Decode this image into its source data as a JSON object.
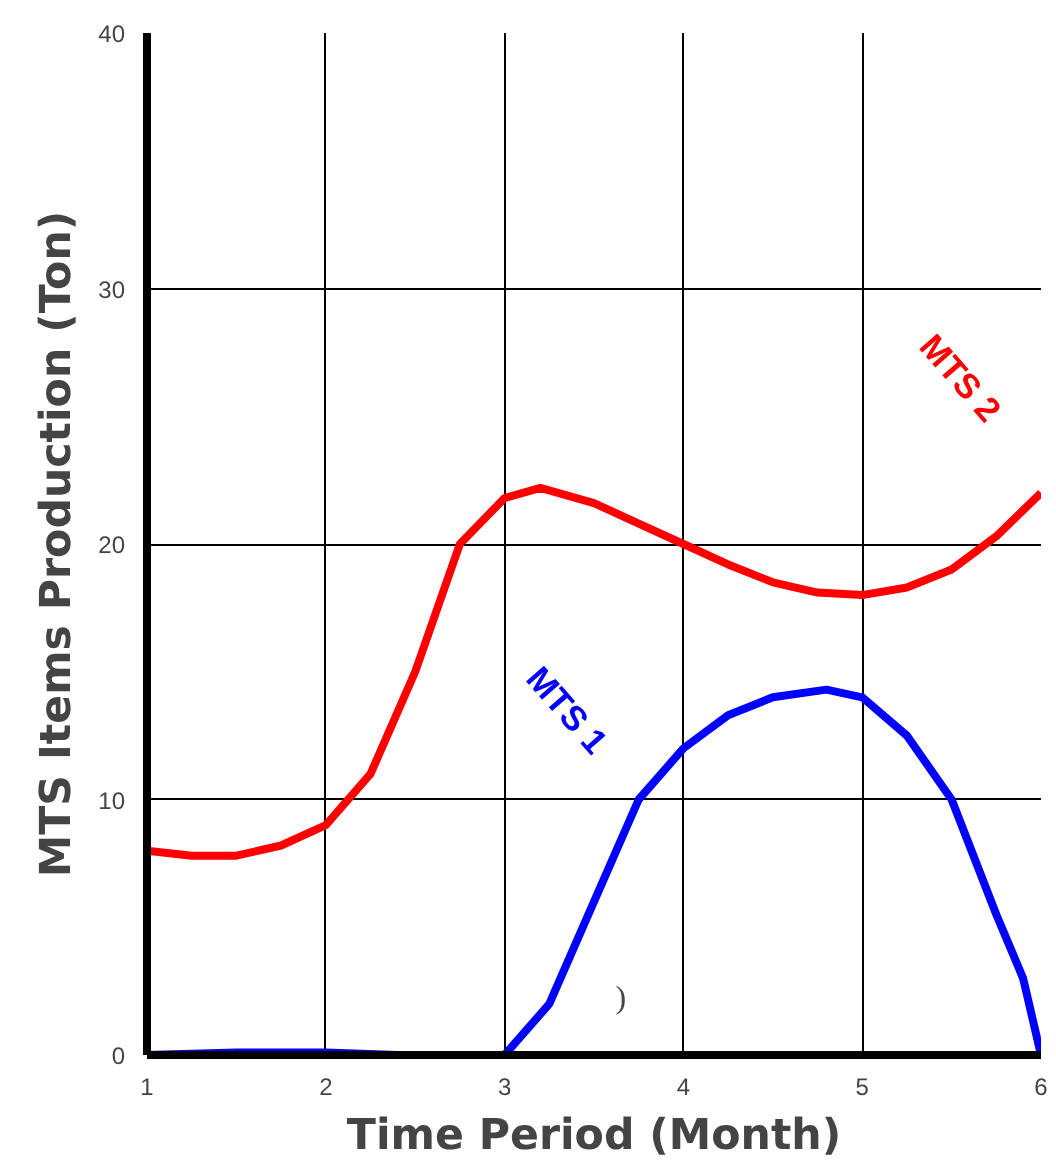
{
  "chart_data": {
    "type": "line",
    "xlabel": "Time Period (Month)",
    "ylabel": "MTS Items Production (Ton)",
    "xlim": [
      1,
      6
    ],
    "ylim": [
      0,
      40
    ],
    "xticks": [
      1,
      2,
      3,
      4,
      5,
      6
    ],
    "yticks": [
      0,
      10,
      20,
      30,
      40
    ],
    "grid": true,
    "line_style": "solid",
    "marker": "none",
    "annotations": [
      ")"
    ],
    "series": [
      {
        "name": "MTS 2",
        "color": "#ff0000",
        "x": [
          1,
          1.25,
          1.5,
          1.75,
          2,
          2.25,
          2.5,
          2.75,
          3,
          3.2,
          3.5,
          3.75,
          4,
          4.25,
          4.5,
          4.75,
          5,
          5.25,
          5.5,
          5.75,
          6
        ],
        "values": [
          8,
          7.8,
          7.8,
          8.2,
          9,
          11,
          15,
          20,
          21.8,
          22.2,
          21.6,
          20.8,
          20,
          19.2,
          18.5,
          18.1,
          18,
          18.3,
          19,
          20.3,
          22
        ]
      },
      {
        "name": "MTS 1",
        "color": "#0000ff",
        "x": [
          1,
          1.5,
          2,
          2.4,
          2.7,
          3,
          3.25,
          3.5,
          3.75,
          4,
          4.25,
          4.5,
          4.8,
          5,
          5.25,
          5.5,
          5.75,
          5.9,
          6
        ],
        "values": [
          0,
          0.1,
          0.1,
          0,
          0,
          0,
          2,
          6,
          10,
          12,
          13.3,
          14,
          14.3,
          14,
          12.5,
          10,
          5.5,
          3,
          0
        ]
      }
    ]
  }
}
